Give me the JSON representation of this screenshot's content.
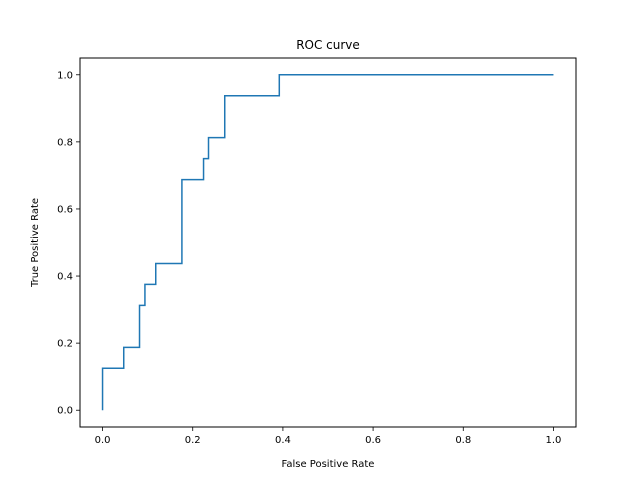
{
  "chart_data": {
    "type": "line",
    "title": "ROC curve",
    "xlabel": "False Positive Rate",
    "ylabel": "True Positive Rate",
    "xlim": [
      -0.05,
      1.05
    ],
    "ylim": [
      -0.05,
      1.05
    ],
    "xticks": [
      0.0,
      0.2,
      0.4,
      0.6,
      0.8,
      1.0
    ],
    "xtick_labels": [
      "0.0",
      "0.2",
      "0.4",
      "0.6",
      "0.8",
      "1.0"
    ],
    "yticks": [
      0.0,
      0.2,
      0.4,
      0.6,
      0.8,
      1.0
    ],
    "ytick_labels": [
      "0.0",
      "0.2",
      "0.4",
      "0.6",
      "0.8",
      "1.0"
    ],
    "grid": false,
    "series": [
      {
        "color": "#1f77b4",
        "x": [
          0.0,
          0.0,
          0.047,
          0.047,
          0.082,
          0.082,
          0.094,
          0.094,
          0.118,
          0.118,
          0.176,
          0.176,
          0.224,
          0.224,
          0.235,
          0.235,
          0.271,
          0.271,
          0.392,
          0.392,
          1.0
        ],
        "y": [
          0.0,
          0.125,
          0.125,
          0.1875,
          0.1875,
          0.3125,
          0.3125,
          0.375,
          0.375,
          0.4375,
          0.4375,
          0.6875,
          0.6875,
          0.75,
          0.75,
          0.8125,
          0.8125,
          0.9375,
          0.9375,
          1.0,
          1.0
        ]
      }
    ]
  }
}
